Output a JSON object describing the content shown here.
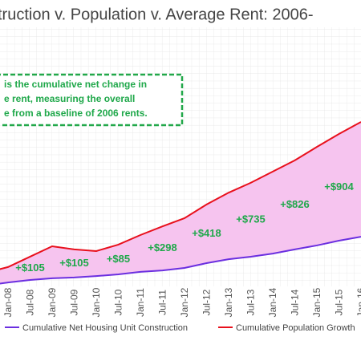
{
  "chart_data": {
    "type": "area-between",
    "title": "truction v. Population v. Average Rent: 2006-",
    "annotation": [
      "is the cumulative net change in",
      "e rent, measuring the overall",
      "e from a baseline of 2006 rents."
    ],
    "categories": [
      null,
      "Jan-08",
      "Jul-08",
      "Jan-09",
      "Jul-09",
      "Jan-10",
      "Jul-10",
      "Jan-11",
      "Jul-11",
      "Jan-12",
      "Jul-12",
      "Jan-13",
      "Jul-13",
      "Jan-14",
      "Jul-14",
      "Jan-15",
      "Jul-15",
      "Jan-16"
    ],
    "series": [
      {
        "name": "Cumulative Net Housing Unit Construction",
        "color": "#6b2fe0",
        "values": [
          4,
          5.1,
          6,
          6.6,
          6.9,
          7.4,
          8,
          8.9,
          9.4,
          10.3,
          12,
          13.4,
          14.3,
          15.4,
          16.9,
          18.3,
          20,
          21.4
        ]
      },
      {
        "name": "Cumulative Population Growth",
        "color": "#e8101c",
        "values": [
          8.6,
          10.6,
          14.3,
          18,
          16.9,
          16.3,
          18.6,
          22,
          25.1,
          28,
          32.9,
          37.1,
          40.6,
          44.6,
          48.6,
          53.4,
          58,
          62.3
        ]
      }
    ],
    "fill_color": "#f6c4ef",
    "rent_change": {
      "values": [
        105,
        105,
        85,
        298,
        418,
        735,
        826,
        904
      ],
      "value_labels": [
        "+$105",
        "+$105",
        "+$85",
        "+$298",
        "+$418",
        "+$735",
        "+$826",
        "+$904"
      ],
      "color": "#1fa84a"
    },
    "ylim": [
      0,
      100
    ]
  }
}
